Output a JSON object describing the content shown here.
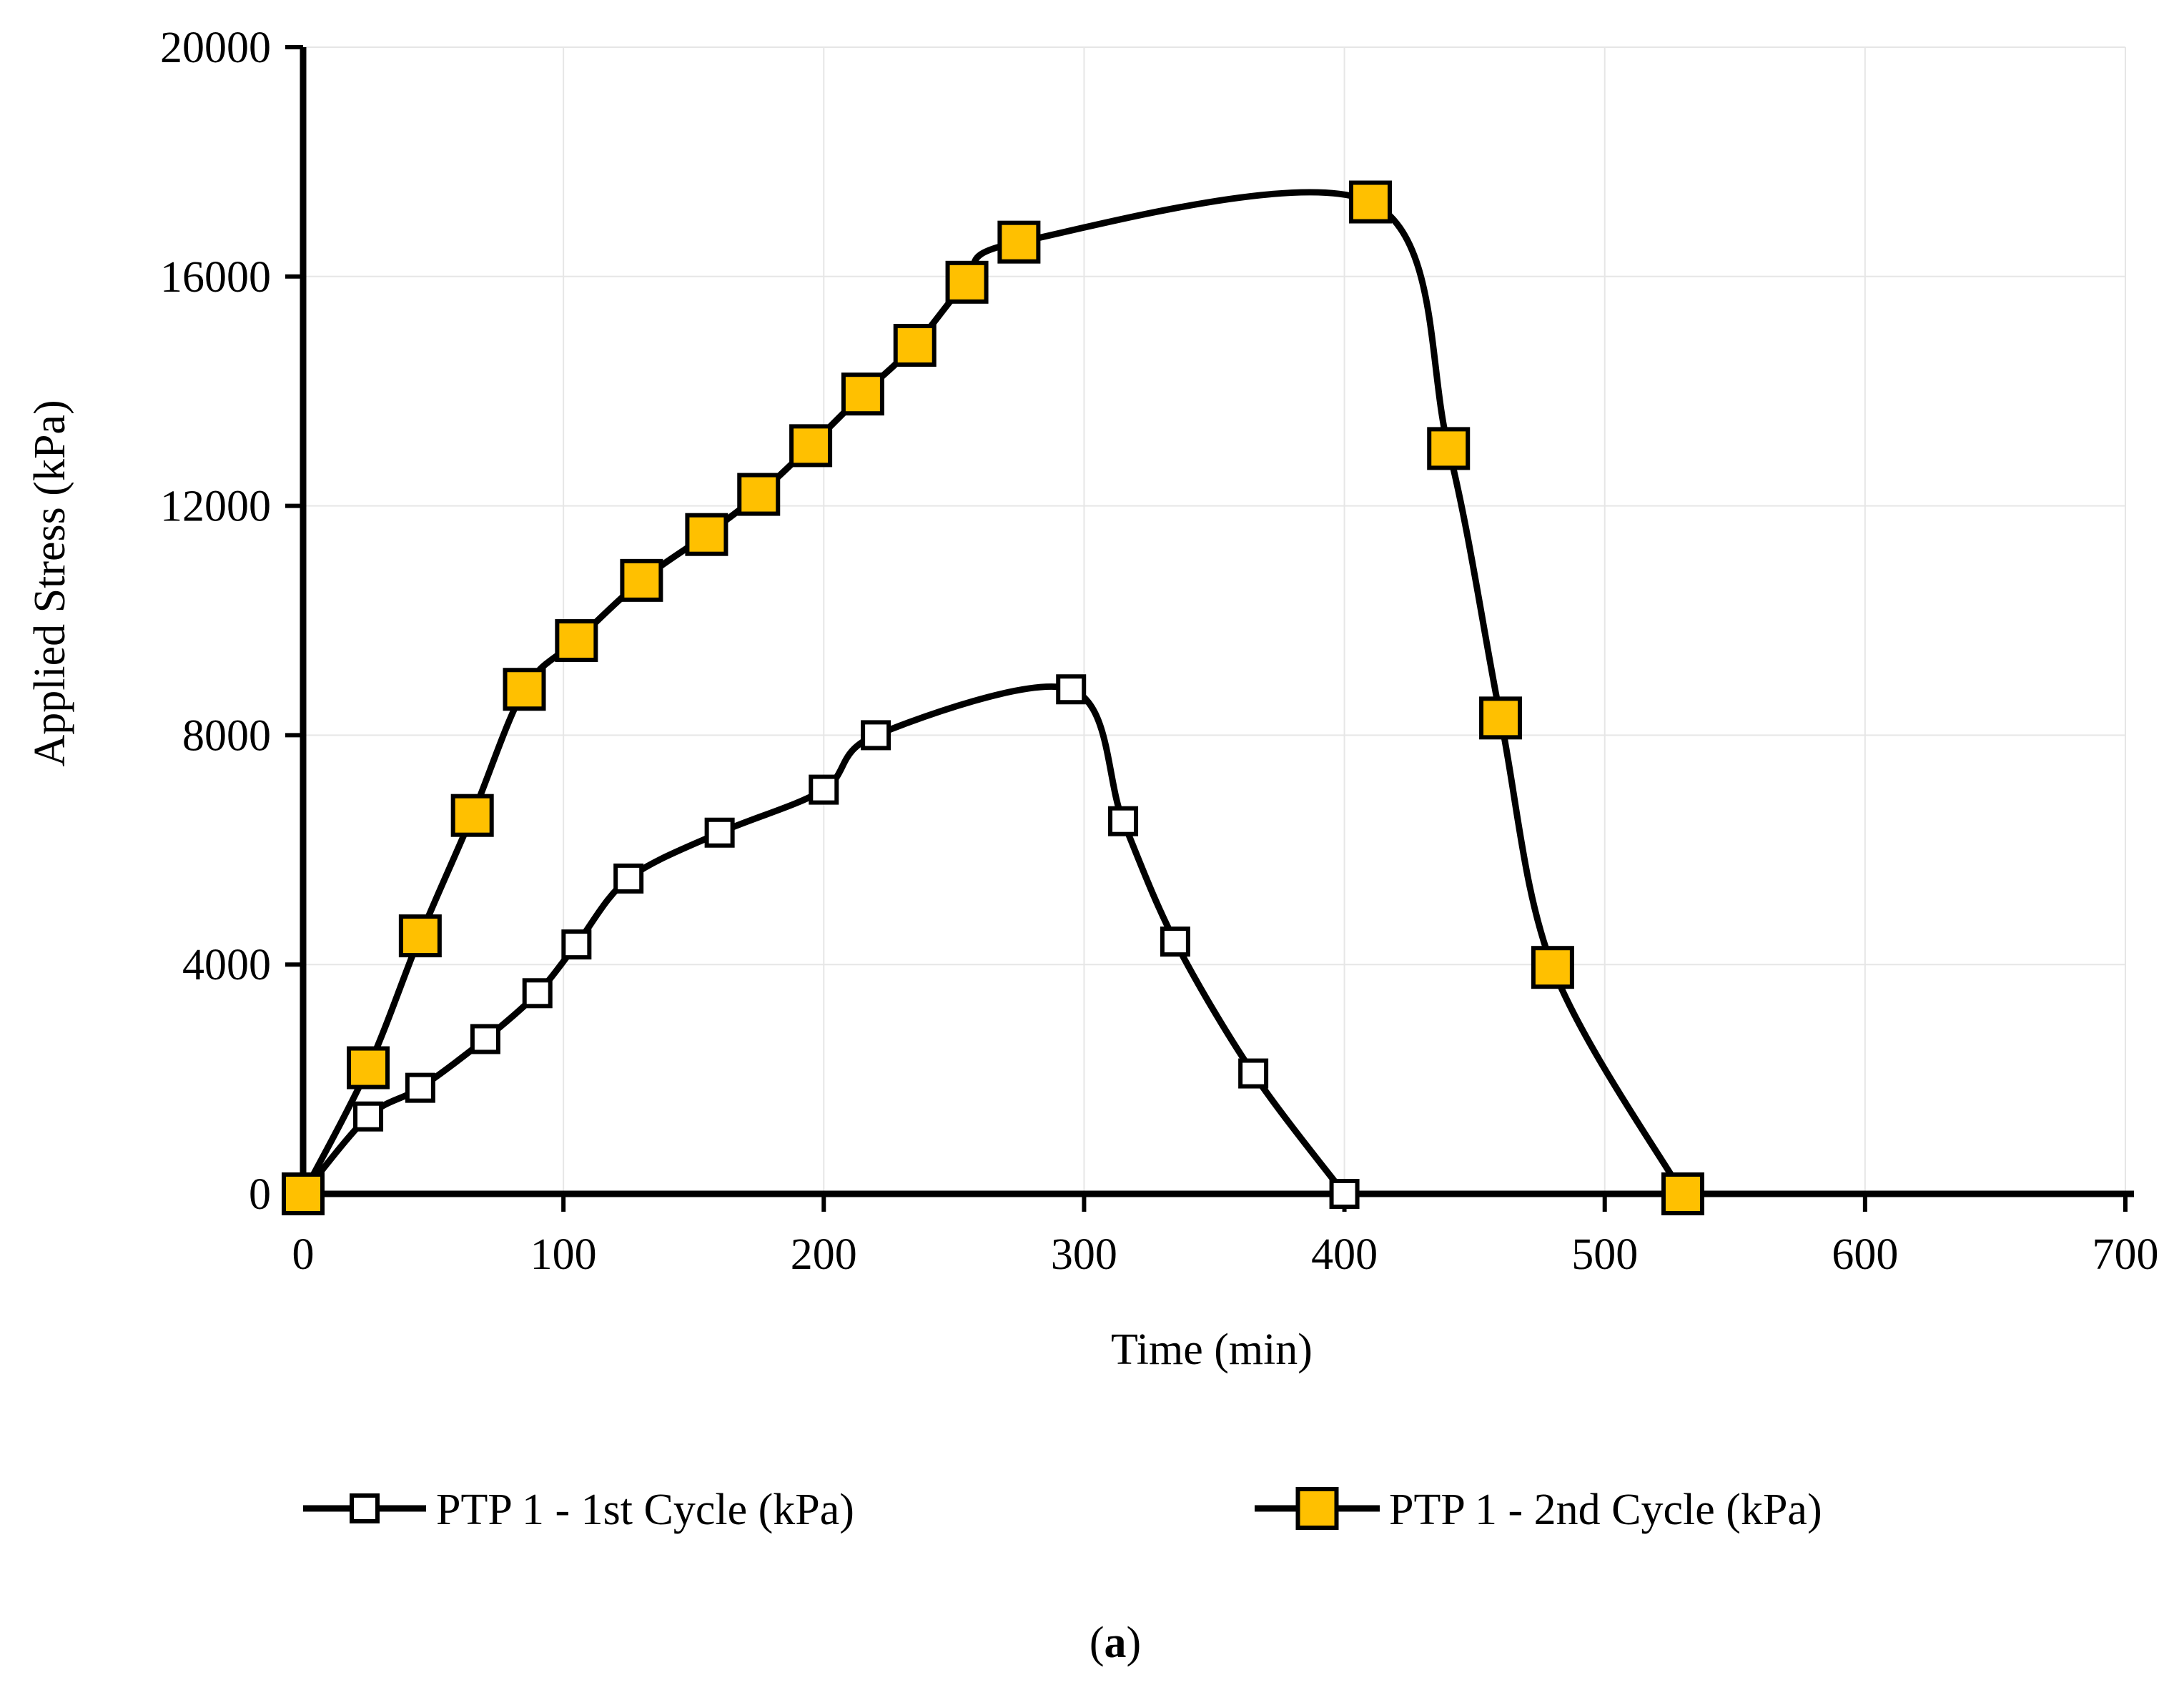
{
  "chart_data": {
    "type": "line",
    "title": "",
    "xlabel": "Time (min)",
    "ylabel": "Applied Stress (kPa)",
    "xlim": [
      0,
      700
    ],
    "ylim": [
      0,
      20000
    ],
    "xticks": [
      0,
      100,
      200,
      300,
      400,
      500,
      600,
      700
    ],
    "yticks": [
      0,
      4000,
      8000,
      12000,
      16000,
      20000
    ],
    "grid": true,
    "legend_position": "bottom",
    "caption_prefix": "(",
    "caption_letter": "a",
    "caption_suffix": ")",
    "series": [
      {
        "name": "PTP 1 - 1st Cycle (kPa)",
        "marker": "open-square",
        "marker_fill": "#ffffff",
        "line_color": "#000000",
        "x": [
          0,
          25,
          45,
          70,
          90,
          105,
          125,
          160,
          200,
          220,
          295,
          315,
          335,
          365,
          400
        ],
        "y": [
          0,
          1350,
          1850,
          2700,
          3500,
          4350,
          5500,
          6300,
          7050,
          8000,
          8800,
          6500,
          4400,
          2100,
          0
        ]
      },
      {
        "name": "PTP 1 - 2nd Cycle (kPa)",
        "marker": "filled-square",
        "marker_fill": "#FFC000",
        "line_color": "#000000",
        "x": [
          0,
          25,
          45,
          65,
          85,
          105,
          130,
          155,
          175,
          195,
          215,
          235,
          255,
          275,
          410,
          440,
          460,
          480,
          530
        ],
        "y": [
          0,
          2200,
          4500,
          6600,
          8800,
          9650,
          10700,
          11500,
          12200,
          13050,
          13950,
          14800,
          15900,
          16600,
          17300,
          13000,
          8300,
          3950,
          0
        ]
      }
    ]
  }
}
